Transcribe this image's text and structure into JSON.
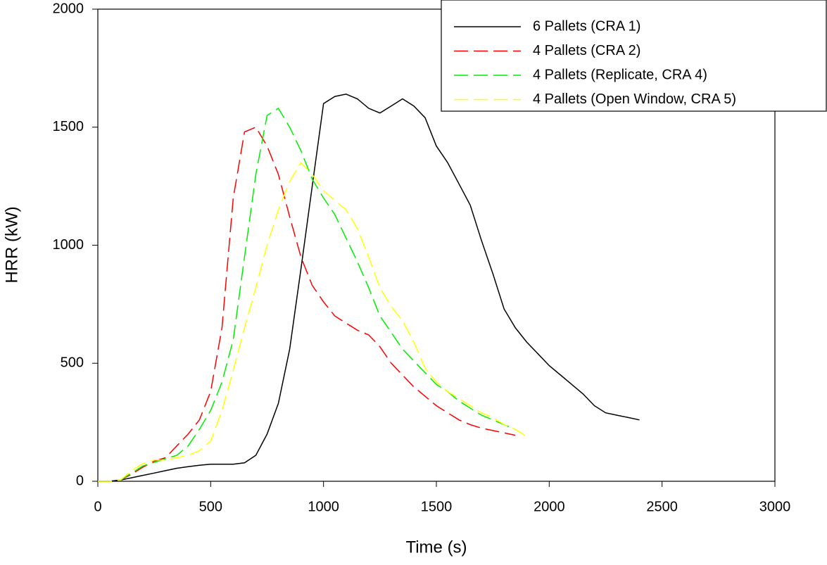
{
  "chart_data": {
    "type": "line",
    "xlabel": "Time (s)",
    "ylabel": "HRR (kW)",
    "xlim": [
      0,
      3000
    ],
    "xticks": [
      0,
      500,
      1000,
      1500,
      2000,
      2500,
      3000
    ],
    "ylim": [
      0,
      2000
    ],
    "yticks": [
      0,
      500,
      1000,
      1500,
      2000
    ],
    "grid": false,
    "legend": "upper right",
    "x": [
      0,
      50,
      100,
      150,
      200,
      250,
      300,
      350,
      400,
      450,
      500,
      550,
      600,
      650,
      700,
      750,
      800,
      850,
      900,
      950,
      1000,
      1050,
      1100,
      1150,
      1200,
      1250,
      1300,
      1350,
      1400,
      1450,
      1500,
      1550,
      1600,
      1650,
      1700,
      1750,
      1800,
      1850,
      1900,
      1950,
      2000,
      2050,
      2100,
      2150,
      2200,
      2250,
      2300,
      2350,
      2400,
      2450
    ],
    "series": [
      {
        "name": "6 Pallets (CRA 1)",
        "color": "#000000",
        "line_style": "solid",
        "values": [
          0,
          0,
          5,
          15,
          25,
          35,
          45,
          55,
          62,
          68,
          72,
          72,
          72,
          78,
          110,
          200,
          330,
          560,
          900,
          1250,
          1600,
          1630,
          1640,
          1620,
          1580,
          1560,
          1590,
          1620,
          1590,
          1540,
          1420,
          1350,
          1260,
          1170,
          1020,
          880,
          730,
          650,
          590,
          540,
          490,
          450,
          410,
          370,
          320,
          290,
          280,
          270,
          260,
          null
        ]
      },
      {
        "name": "4 Pallets (CRA 2)",
        "color": "#ff0000",
        "line_style": "dashed",
        "values": [
          0,
          0,
          5,
          30,
          60,
          85,
          100,
          150,
          200,
          260,
          380,
          650,
          1200,
          1480,
          1500,
          1420,
          1300,
          1120,
          950,
          830,
          760,
          700,
          670,
          640,
          620,
          570,
          500,
          450,
          400,
          360,
          320,
          290,
          260,
          240,
          225,
          215,
          205,
          195,
          null,
          null,
          null,
          null,
          null,
          null,
          null,
          null,
          null,
          null,
          null,
          null
        ]
      },
      {
        "name": "4 Pallets (Replicate, CRA 4)",
        "color": "#00ee00",
        "line_style": "dashed",
        "values": [
          0,
          0,
          5,
          35,
          65,
          80,
          95,
          110,
          150,
          220,
          300,
          420,
          600,
          950,
          1300,
          1550,
          1580,
          1500,
          1400,
          1280,
          1200,
          1130,
          1030,
          930,
          820,
          700,
          630,
          560,
          510,
          460,
          410,
          380,
          340,
          310,
          280,
          260,
          240,
          220,
          null,
          null,
          null,
          null,
          null,
          null,
          null,
          null,
          null,
          null,
          null,
          null
        ]
      },
      {
        "name": "4 Pallets (Open Window, CRA 5)",
        "color": "#ffff00",
        "line_style": "dashed",
        "values": [
          0,
          0,
          5,
          45,
          75,
          90,
          90,
          100,
          110,
          130,
          170,
          300,
          470,
          650,
          820,
          1000,
          1150,
          1270,
          1350,
          1300,
          1230,
          1190,
          1150,
          1070,
          950,
          820,
          740,
          680,
          590,
          480,
          420,
          380,
          350,
          320,
          290,
          270,
          240,
          220,
          190,
          null,
          null,
          null,
          null,
          null,
          null,
          null,
          null,
          null,
          null,
          null
        ]
      }
    ]
  }
}
